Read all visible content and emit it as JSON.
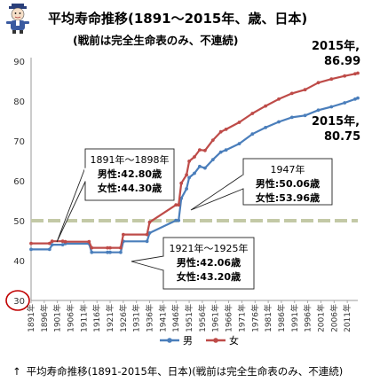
{
  "chart_data": {
    "type": "line",
    "title": "平均寿命推移(1891〜2015年、歳、日本)",
    "subtitle": "(戦前は完全生命表のみ、不連続)",
    "ylim": [
      30,
      90
    ],
    "yticks": [
      30,
      40,
      50,
      60,
      70,
      80,
      90
    ],
    "highlight_ytick": 30,
    "xlim": [
      1891,
      2015
    ],
    "xtick_years": [
      1891,
      1896,
      1901,
      1906,
      1911,
      1916,
      1921,
      1926,
      1931,
      1936,
      1941,
      1946,
      1951,
      1956,
      1961,
      1966,
      1971,
      1976,
      1981,
      1986,
      1991,
      1996,
      2001,
      2006,
      2011
    ],
    "xtick_labels": [
      "1891年",
      "1896年",
      "1901年",
      "1906年",
      "1911年",
      "1916年",
      "1921年",
      "1926年",
      "1931年",
      "1936年",
      "1941年",
      "1946年",
      "1951年",
      "1956年",
      "1961年",
      "1966年",
      "1971年",
      "1976年",
      "1981年",
      "1986年",
      "1991年",
      "1996年",
      "2001年",
      "2006年",
      "2011年"
    ],
    "reference_line": 50,
    "series": [
      {
        "name": "男",
        "color": "#4a7ebb",
        "points": [
          [
            1891,
            42.8
          ],
          [
            1898,
            42.8
          ],
          [
            1899,
            43.97
          ],
          [
            1903,
            43.97
          ],
          [
            1904,
            44.25
          ],
          [
            1913,
            44.25
          ],
          [
            1914,
            42.06
          ],
          [
            1920,
            42.06
          ],
          [
            1921,
            42.06
          ],
          [
            1925,
            42.06
          ],
          [
            1926,
            44.82
          ],
          [
            1935,
            44.82
          ],
          [
            1936,
            46.92
          ],
          [
            1946,
            50.06
          ],
          [
            1947,
            50.06
          ],
          [
            1948,
            55.6
          ],
          [
            1950,
            58.0
          ],
          [
            1951,
            60.8
          ],
          [
            1953,
            61.9
          ],
          [
            1955,
            63.6
          ],
          [
            1957,
            63.2
          ],
          [
            1960,
            65.32
          ],
          [
            1963,
            67.2
          ],
          [
            1965,
            67.74
          ],
          [
            1970,
            69.31
          ],
          [
            1975,
            71.73
          ],
          [
            1980,
            73.35
          ],
          [
            1985,
            74.78
          ],
          [
            1990,
            75.92
          ],
          [
            1995,
            76.38
          ],
          [
            2000,
            77.72
          ],
          [
            2005,
            78.56
          ],
          [
            2010,
            79.55
          ],
          [
            2014,
            80.5
          ],
          [
            2015,
            80.75
          ]
        ]
      },
      {
        "name": "女",
        "color": "#be4b48",
        "points": [
          [
            1891,
            44.3
          ],
          [
            1898,
            44.3
          ],
          [
            1899,
            44.85
          ],
          [
            1903,
            44.85
          ],
          [
            1904,
            44.73
          ],
          [
            1913,
            44.73
          ],
          [
            1914,
            43.2
          ],
          [
            1920,
            43.2
          ],
          [
            1921,
            43.2
          ],
          [
            1925,
            43.2
          ],
          [
            1926,
            46.54
          ],
          [
            1935,
            46.54
          ],
          [
            1936,
            49.63
          ],
          [
            1946,
            53.96
          ],
          [
            1947,
            53.96
          ],
          [
            1948,
            59.4
          ],
          [
            1950,
            61.5
          ],
          [
            1951,
            64.9
          ],
          [
            1953,
            66.0
          ],
          [
            1955,
            67.75
          ],
          [
            1957,
            67.6
          ],
          [
            1960,
            70.19
          ],
          [
            1963,
            72.3
          ],
          [
            1965,
            72.92
          ],
          [
            1970,
            74.66
          ],
          [
            1975,
            76.89
          ],
          [
            1980,
            78.76
          ],
          [
            1985,
            80.48
          ],
          [
            1990,
            81.9
          ],
          [
            1995,
            82.85
          ],
          [
            2000,
            84.6
          ],
          [
            2005,
            85.52
          ],
          [
            2010,
            86.3
          ],
          [
            2014,
            86.83
          ],
          [
            2015,
            86.99
          ]
        ]
      }
    ],
    "annotations": [
      {
        "id": "ann-1891",
        "lines": [
          "1891年〜1898年",
          "男性:42.80歳",
          "女性:44.30歳"
        ]
      },
      {
        "id": "ann-1947",
        "lines": [
          "1947年",
          "男性:50.06歳",
          "女性:53.96歳"
        ]
      },
      {
        "id": "ann-1921",
        "lines": [
          "1921年〜1925年",
          "男性:42.06歳",
          "女性:43.20歳"
        ]
      }
    ],
    "end_labels": {
      "female": [
        "2015年,",
        "86.99"
      ],
      "male": [
        "2015年,",
        "80.75"
      ]
    },
    "legend": {
      "position": "bottom",
      "entries": [
        "男",
        "女"
      ]
    }
  },
  "caption": {
    "text": "平均寿命推移(1891-2015年、日本)(戦前は完全生命表のみ、不連続)"
  },
  "icons": {
    "arrow": "↑"
  }
}
